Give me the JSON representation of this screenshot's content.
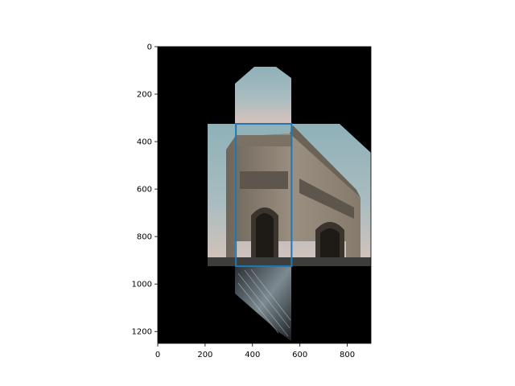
{
  "chart_data": {
    "type": "image",
    "title": "",
    "xlabel": "",
    "ylabel": "",
    "xlim": [
      0,
      900
    ],
    "ylim": [
      1250,
      0
    ],
    "y_inverted": true,
    "xticks": [
      0,
      200,
      400,
      600,
      800
    ],
    "yticks": [
      0,
      200,
      400,
      600,
      800,
      1000,
      1200
    ],
    "grid": false,
    "legend": "none",
    "image_content": "Arc de Triomphe photo, perspective-warped panorama on black background",
    "background_color": "#000000",
    "rectangle": {
      "x": [
        330,
        565
      ],
      "y": [
        325,
        925
      ],
      "color": "#1f77b4"
    }
  }
}
